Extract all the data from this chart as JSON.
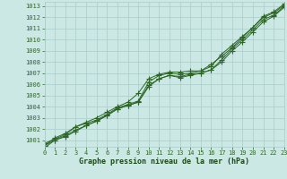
{
  "x": [
    0,
    1,
    2,
    3,
    4,
    5,
    6,
    7,
    8,
    9,
    10,
    11,
    12,
    13,
    14,
    15,
    16,
    17,
    18,
    19,
    20,
    21,
    22,
    23
  ],
  "series": [
    [
      1000.7,
      1001.1,
      1001.5,
      1002.2,
      1002.5,
      1002.8,
      1003.3,
      1003.9,
      1004.2,
      1004.5,
      1006.2,
      1006.8,
      1007.0,
      1006.9,
      1007.0,
      1007.2,
      1007.8,
      1008.5,
      1009.3,
      1010.2,
      1011.1,
      1012.0,
      1012.4,
      1013.1
    ],
    [
      1000.5,
      1001.0,
      1001.4,
      1001.9,
      1002.3,
      1002.7,
      1003.2,
      1003.8,
      1004.1,
      1004.4,
      1005.9,
      1006.5,
      1006.8,
      1006.6,
      1006.8,
      1007.0,
      1007.3,
      1008.0,
      1009.0,
      1009.8,
      1010.7,
      1011.6,
      1012.1,
      1012.9
    ],
    [
      1000.3,
      1001.0,
      1001.3,
      1001.8,
      1002.3,
      1002.7,
      1003.2,
      1003.8,
      1004.1,
      1004.4,
      1005.8,
      1006.5,
      1006.8,
      1006.7,
      1006.9,
      1007.0,
      1007.3,
      1008.2,
      1009.2,
      1010.0,
      1010.9,
      1011.8,
      1012.2,
      1013.0
    ],
    [
      1000.5,
      1001.2,
      1001.6,
      1002.2,
      1002.6,
      1003.0,
      1003.5,
      1004.0,
      1004.4,
      1005.2,
      1006.5,
      1006.9,
      1007.1,
      1007.1,
      1007.2,
      1007.2,
      1007.6,
      1008.7,
      1009.5,
      1010.3,
      1011.1,
      1012.1,
      1012.5,
      1013.2
    ]
  ],
  "line_color": "#2d6628",
  "marker": "+",
  "background_color": "#cce8e4",
  "grid_color": "#aaccca",
  "xlabel": "Graphe pression niveau de la mer (hPa)",
  "xlabel_color": "#1a4a1a",
  "tick_color": "#2d6628",
  "ylim": [
    1000.4,
    1013.4
  ],
  "xlim": [
    0,
    23
  ],
  "yticks": [
    1001,
    1002,
    1003,
    1004,
    1005,
    1006,
    1007,
    1008,
    1009,
    1010,
    1011,
    1012,
    1013
  ],
  "xticks": [
    0,
    1,
    2,
    3,
    4,
    5,
    6,
    7,
    8,
    9,
    10,
    11,
    12,
    13,
    14,
    15,
    16,
    17,
    18,
    19,
    20,
    21,
    22,
    23
  ],
  "fontsize_tick": 5.0,
  "fontsize_xlabel": 6.0,
  "linewidth": 0.7,
  "markersize": 4,
  "markerwidth": 0.8
}
